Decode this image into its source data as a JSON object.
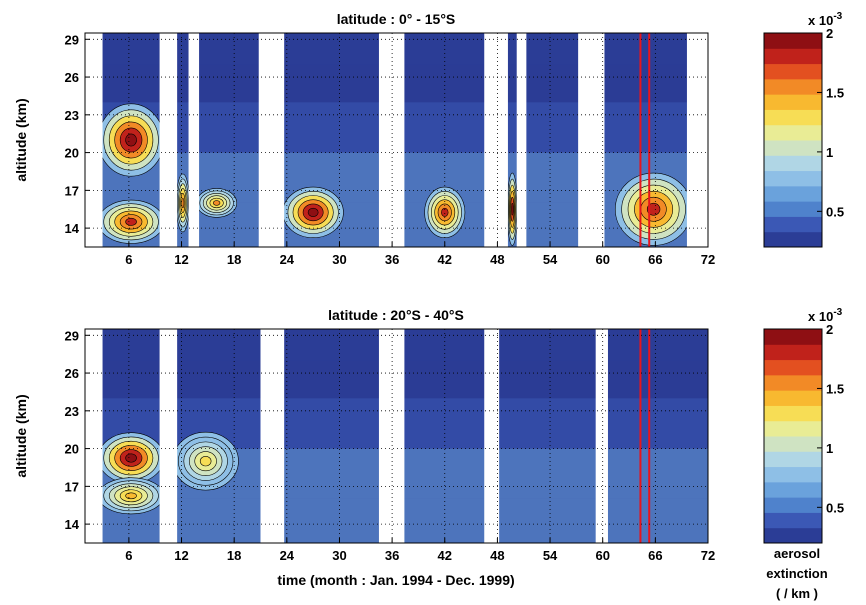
{
  "colors": {
    "scale": [
      "#2b3d96",
      "#3b58b5",
      "#4f82cc",
      "#6aa2dc",
      "#8ebfe6",
      "#b0d6e5",
      "#cfe3c2",
      "#e9ec95",
      "#f7dd55",
      "#f8b930",
      "#f28a26",
      "#e35020",
      "#c0221b",
      "#8e0f13"
    ],
    "white": "#ffffff",
    "contour": "#000000",
    "marker": "#e8141c"
  },
  "chart_data": [
    {
      "type": "heatmap",
      "title": "latitude :  0° - 15°S",
      "xlabel": "",
      "ylabel": "altitude (km)",
      "xlim": [
        1,
        72
      ],
      "ylim": [
        12.5,
        29.5
      ],
      "xticks": [
        6,
        12,
        18,
        24,
        30,
        36,
        42,
        48,
        54,
        60,
        66,
        72
      ],
      "yticks": [
        14,
        17,
        20,
        23,
        26,
        29
      ],
      "grid": true,
      "data_gaps_months": [
        [
          9.5,
          11.5
        ],
        [
          12.8,
          14.0
        ],
        [
          20.8,
          23.7
        ],
        [
          34.5,
          37.4
        ],
        [
          46.5,
          49.2
        ],
        [
          50.2,
          51.3
        ],
        [
          57.2,
          60.2
        ],
        [
          69.6,
          72
        ]
      ],
      "no_data_before_month": 3.0,
      "reference_lines_months": [
        64.3,
        65.3
      ],
      "peak_regions": [
        {
          "x": [
            3,
            9.5
          ],
          "y": [
            18.5,
            23.5
          ],
          "value": 2.0
        },
        {
          "x": [
            3,
            9.5
          ],
          "y": [
            13,
            16
          ],
          "value": 1.8
        },
        {
          "x": [
            11.5,
            12.8
          ],
          "y": [
            14,
            18
          ],
          "value": 1.6
        },
        {
          "x": [
            14,
            18
          ],
          "y": [
            15,
            17
          ],
          "value": 1.5
        },
        {
          "x": [
            24,
            30
          ],
          "y": [
            13.5,
            17
          ],
          "value": 2.0
        },
        {
          "x": [
            40,
            44
          ],
          "y": [
            13.5,
            17
          ],
          "value": 1.8
        },
        {
          "x": [
            49.2,
            50.2
          ],
          "y": [
            13,
            18
          ],
          "value": 1.9
        },
        {
          "x": [
            62,
            69.6
          ],
          "y": [
            13,
            18
          ],
          "value": 1.8
        }
      ]
    },
    {
      "type": "heatmap",
      "title": "latitude :  20°S - 40°S",
      "xlabel": "time (month : Jan. 1994 - Dec. 1999)",
      "ylabel": "altitude (km)",
      "xlim": [
        1,
        72
      ],
      "ylim": [
        12.5,
        29.5
      ],
      "xticks": [
        6,
        12,
        18,
        24,
        30,
        36,
        42,
        48,
        54,
        60,
        66,
        72
      ],
      "yticks": [
        14,
        17,
        20,
        23,
        26,
        29
      ],
      "grid": true,
      "data_gaps_months": [
        [
          9.5,
          11.5
        ],
        [
          21.0,
          23.7
        ],
        [
          34.5,
          37.4
        ],
        [
          46.5,
          48.2
        ],
        [
          59.2,
          60.6
        ]
      ],
      "no_data_before_month": 3.0,
      "reference_lines_months": [
        64.3,
        65.3
      ],
      "peak_regions": [
        {
          "x": [
            3,
            9.5
          ],
          "y": [
            17.5,
            21
          ],
          "value": 2.0
        },
        {
          "x": [
            3,
            9.5
          ],
          "y": [
            15,
            17.5
          ],
          "value": 1.4
        },
        {
          "x": [
            11.5,
            18
          ],
          "y": [
            17,
            21
          ],
          "value": 1.3
        }
      ]
    }
  ],
  "colorbar": {
    "multiplier": "x 10",
    "exponent": "-3",
    "range": [
      0.2,
      2.0
    ],
    "ticks": [
      0.5,
      1,
      1.5,
      2
    ],
    "tick_labels": [
      "0.5",
      "1",
      "1.5",
      "2"
    ],
    "label_lines": [
      "aerosol",
      "extinction",
      "( / km )"
    ]
  }
}
